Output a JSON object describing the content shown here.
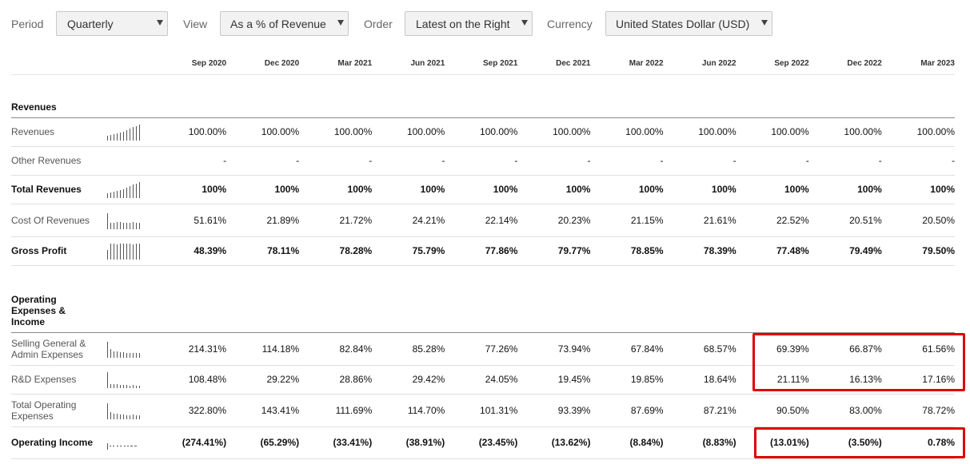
{
  "toolbar": {
    "period_label": "Period",
    "period_value": "Quarterly",
    "view_label": "View",
    "view_value": "As a % of Revenue",
    "order_label": "Order",
    "order_value": "Latest on the Right",
    "currency_label": "Currency",
    "currency_value": "United States Dollar (USD)"
  },
  "columns": [
    "Sep 2020",
    "Dec 2020",
    "Mar 2021",
    "Jun 2021",
    "Sep 2021",
    "Dec 2021",
    "Mar 2022",
    "Jun 2022",
    "Sep 2022",
    "Dec 2022",
    "Mar 2023"
  ],
  "sections": {
    "revenues": "Revenues",
    "opex": "Operating Expenses & Income"
  },
  "rows": {
    "revenues": {
      "label": "Revenues",
      "values": [
        "100.00%",
        "100.00%",
        "100.00%",
        "100.00%",
        "100.00%",
        "100.00%",
        "100.00%",
        "100.00%",
        "100.00%",
        "100.00%",
        "100.00%"
      ]
    },
    "other_revenues": {
      "label": "Other Revenues",
      "values": [
        "-",
        "-",
        "-",
        "-",
        "-",
        "-",
        "-",
        "-",
        "-",
        "-",
        "-"
      ]
    },
    "total_revenues": {
      "label": "Total Revenues",
      "values": [
        "100%",
        "100%",
        "100%",
        "100%",
        "100%",
        "100%",
        "100%",
        "100%",
        "100%",
        "100%",
        "100%"
      ]
    },
    "cost_of_revenues": {
      "label": "Cost Of Revenues",
      "values": [
        "51.61%",
        "21.89%",
        "21.72%",
        "24.21%",
        "22.14%",
        "20.23%",
        "21.15%",
        "21.61%",
        "22.52%",
        "20.51%",
        "20.50%"
      ]
    },
    "gross_profit": {
      "label": "Gross Profit",
      "values": [
        "48.39%",
        "78.11%",
        "78.28%",
        "75.79%",
        "77.86%",
        "79.77%",
        "78.85%",
        "78.39%",
        "77.48%",
        "79.49%",
        "79.50%"
      ]
    },
    "sga": {
      "label": "Selling General & Admin Expenses",
      "values": [
        "214.31%",
        "114.18%",
        "82.84%",
        "85.28%",
        "77.26%",
        "73.94%",
        "67.84%",
        "68.57%",
        "69.39%",
        "66.87%",
        "61.56%"
      ]
    },
    "rnd": {
      "label": "R&D Expenses",
      "values": [
        "108.48%",
        "29.22%",
        "28.86%",
        "29.42%",
        "24.05%",
        "19.45%",
        "19.85%",
        "18.64%",
        "21.11%",
        "16.13%",
        "17.16%"
      ]
    },
    "total_opex": {
      "label": "Total Operating Expenses",
      "values": [
        "322.80%",
        "143.41%",
        "111.69%",
        "114.70%",
        "101.31%",
        "93.39%",
        "87.69%",
        "87.21%",
        "90.50%",
        "83.00%",
        "78.72%"
      ]
    },
    "operating_income": {
      "label": "Operating Income",
      "values": [
        "(274.41%)",
        "(65.29%)",
        "(33.41%)",
        "(38.91%)",
        "(23.45%)",
        "(13.62%)",
        "(8.84%)",
        "(8.83%)",
        "(13.01%)",
        "(3.50%)",
        "0.78%"
      ]
    }
  },
  "sparkline_fractions": {
    "revenues": [
      0.3,
      0.35,
      0.4,
      0.45,
      0.5,
      0.55,
      0.65,
      0.75,
      0.85,
      0.92,
      1.0
    ],
    "total_revenues": [
      0.3,
      0.35,
      0.4,
      0.45,
      0.5,
      0.55,
      0.65,
      0.75,
      0.85,
      0.92,
      1.0
    ],
    "cost_of_revenues": [
      1.0,
      0.42,
      0.42,
      0.47,
      0.43,
      0.39,
      0.41,
      0.42,
      0.44,
      0.4,
      0.4
    ],
    "gross_profit": [
      0.6,
      0.98,
      0.98,
      0.95,
      0.98,
      1.0,
      0.99,
      0.98,
      0.97,
      1.0,
      1.0
    ],
    "sga": [
      1.0,
      0.53,
      0.39,
      0.4,
      0.36,
      0.35,
      0.32,
      0.32,
      0.32,
      0.31,
      0.29
    ],
    "rnd": [
      1.0,
      0.27,
      0.27,
      0.27,
      0.22,
      0.18,
      0.18,
      0.17,
      0.19,
      0.15,
      0.16
    ],
    "total_opex": [
      1.0,
      0.44,
      0.35,
      0.36,
      0.31,
      0.29,
      0.27,
      0.27,
      0.28,
      0.26,
      0.24
    ]
  },
  "colors": {
    "highlight": "#e00000"
  }
}
